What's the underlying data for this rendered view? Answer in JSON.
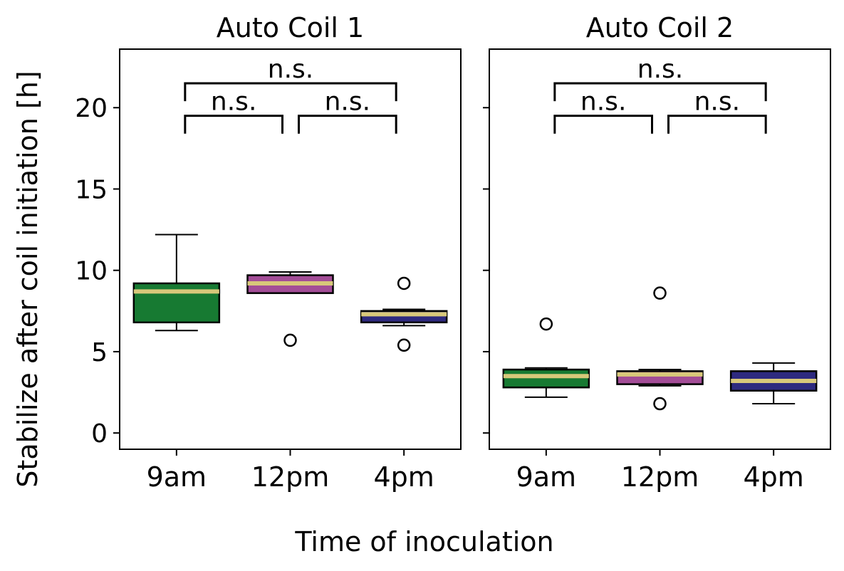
{
  "figure": {
    "ylabel": "Stabilize after coil initiation [h]",
    "xlabel": "Time of inoculation"
  },
  "colors": {
    "9am": "#177a32",
    "12pm": "#a34d97",
    "4pm": "#2e2a7f",
    "median": "#d8c87a",
    "bracket": "#000000"
  },
  "chart_data": [
    {
      "type": "box",
      "title": "Auto Coil 1",
      "categories": [
        "9am",
        "12pm",
        "4pm"
      ],
      "ylim": [
        -1,
        23.6
      ],
      "yticks": [
        0,
        5,
        10,
        15,
        20
      ],
      "grid": false,
      "boxes": [
        {
          "category": "9am",
          "whisker_low": 6.3,
          "q1": 6.8,
          "median": 8.7,
          "q3": 9.2,
          "whisker_high": 12.2,
          "outliers": []
        },
        {
          "category": "12pm",
          "whisker_low": 8.6,
          "q1": 8.6,
          "median": 9.2,
          "q3": 9.7,
          "whisker_high": 9.9,
          "outliers": [
            5.7
          ]
        },
        {
          "category": "4pm",
          "whisker_low": 6.6,
          "q1": 6.8,
          "median": 7.3,
          "q3": 7.5,
          "whisker_high": 7.6,
          "outliers": [
            9.2,
            5.4
          ]
        }
      ],
      "annotations": [
        {
          "from": "9am",
          "to": "12pm",
          "label": "n.s."
        },
        {
          "from": "12pm",
          "to": "4pm",
          "label": "n.s."
        },
        {
          "from": "9am",
          "to": "4pm",
          "label": "n.s."
        }
      ]
    },
    {
      "type": "box",
      "title": "Auto Coil 2",
      "categories": [
        "9am",
        "12pm",
        "4pm"
      ],
      "ylim": [
        -1,
        23.6
      ],
      "yticks": [
        0,
        5,
        10,
        15,
        20
      ],
      "grid": false,
      "boxes": [
        {
          "category": "9am",
          "whisker_low": 2.2,
          "q1": 2.8,
          "median": 3.5,
          "q3": 3.9,
          "whisker_high": 4.0,
          "outliers": [
            6.7
          ]
        },
        {
          "category": "12pm",
          "whisker_low": 2.9,
          "q1": 3.0,
          "median": 3.6,
          "q3": 3.8,
          "whisker_high": 3.9,
          "outliers": [
            8.6,
            1.8
          ]
        },
        {
          "category": "4pm",
          "whisker_low": 1.8,
          "q1": 2.6,
          "median": 3.2,
          "q3": 3.8,
          "whisker_high": 4.3,
          "outliers": []
        }
      ],
      "annotations": [
        {
          "from": "9am",
          "to": "12pm",
          "label": "n.s."
        },
        {
          "from": "12pm",
          "to": "4pm",
          "label": "n.s."
        },
        {
          "from": "9am",
          "to": "4pm",
          "label": "n.s."
        }
      ]
    }
  ]
}
